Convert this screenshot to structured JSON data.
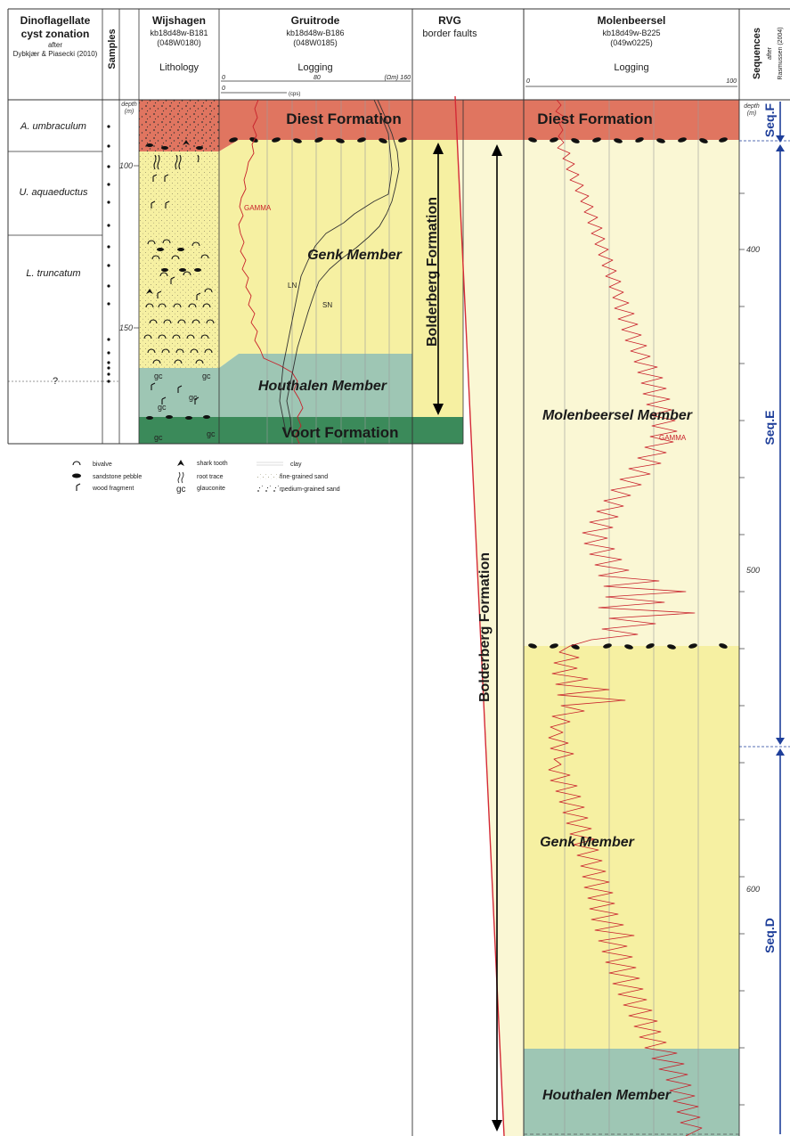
{
  "columns": {
    "dinoflagellate": {
      "title1": "Dinoflagellate",
      "title2": "cyst zonation",
      "after": "after",
      "reference": "Dybkjær & Piasecki (2010)"
    },
    "samples": {
      "title": "Samples"
    },
    "wijshagen": {
      "title": "Wijshagen",
      "borehole": "kb18d48w-B181",
      "code": "(048W0180)",
      "subtitle": "Lithology"
    },
    "gruitrode": {
      "title": "Gruitrode",
      "borehole": "kb18d48w-B186",
      "code": "(048W0185)",
      "subtitle": "Logging",
      "scale_resistivity": [
        "0",
        "80",
        "(Ωm) 160"
      ],
      "scale_gamma": [
        "0",
        "(cps)"
      ]
    },
    "rvg": {
      "title": "RVG",
      "subtitle": "border faults"
    },
    "molenbeersel": {
      "title": "Molenbeersel",
      "borehole": "kb18d49w-B225",
      "code": "(049w0225)",
      "subtitle": "Logging",
      "scale": [
        "0",
        "100"
      ]
    },
    "sequences": {
      "title": "Sequences",
      "after": "after",
      "reference": "Rasmussen (2004)"
    }
  },
  "depth_label": {
    "word": "depth",
    "unit": "(m)"
  },
  "zones": [
    "A. umbraculum",
    "U. aquaeductus",
    "L. truncatum",
    "?"
  ],
  "left_depth_ticks": [
    "100",
    "150"
  ],
  "right_depth_ticks": [
    "400",
    "500",
    "600"
  ],
  "units_left": {
    "diest": "Diest Formation",
    "genk": "Genk Member",
    "houthalen": "Houthalen Member",
    "voort": "Voort Formation",
    "bolderberg": "Bolderberg Formation"
  },
  "units_right": {
    "diest": "Diest Formation",
    "molenbeersel": "Molenbeersel Member",
    "genk": "Genk Member",
    "houthalen": "Houthalen Member",
    "bolderberg": "Bolderberg Formation"
  },
  "log_labels": {
    "gamma_left": "GAMMA",
    "ln": "LN",
    "sn": "SN",
    "gamma_right": "GAMMA"
  },
  "lithology_symbols": {
    "glauconite": "gc"
  },
  "sequences": [
    "Seq.F",
    "Seq.E",
    "Seq.D"
  ],
  "legend": {
    "bivalve": "bivalve",
    "pebble": "sandstone pebble",
    "wood": "wood fragment",
    "shark": "shark tooth",
    "root": "root trace",
    "glauconite": "glauconite",
    "glauconite_symbol": "gc",
    "clay": "clay",
    "fine_sand": "fine-grained sand",
    "medium_sand": "medium-grained sand"
  },
  "colors": {
    "diest": "#e07560",
    "genk": "#f6f0a2",
    "molenbeersel_light": "#faf7d4",
    "houthalen": "#9ec6b4",
    "voort": "#3b8a5a",
    "gamma": "#c8202a",
    "sequence": "#1f3f9a"
  }
}
